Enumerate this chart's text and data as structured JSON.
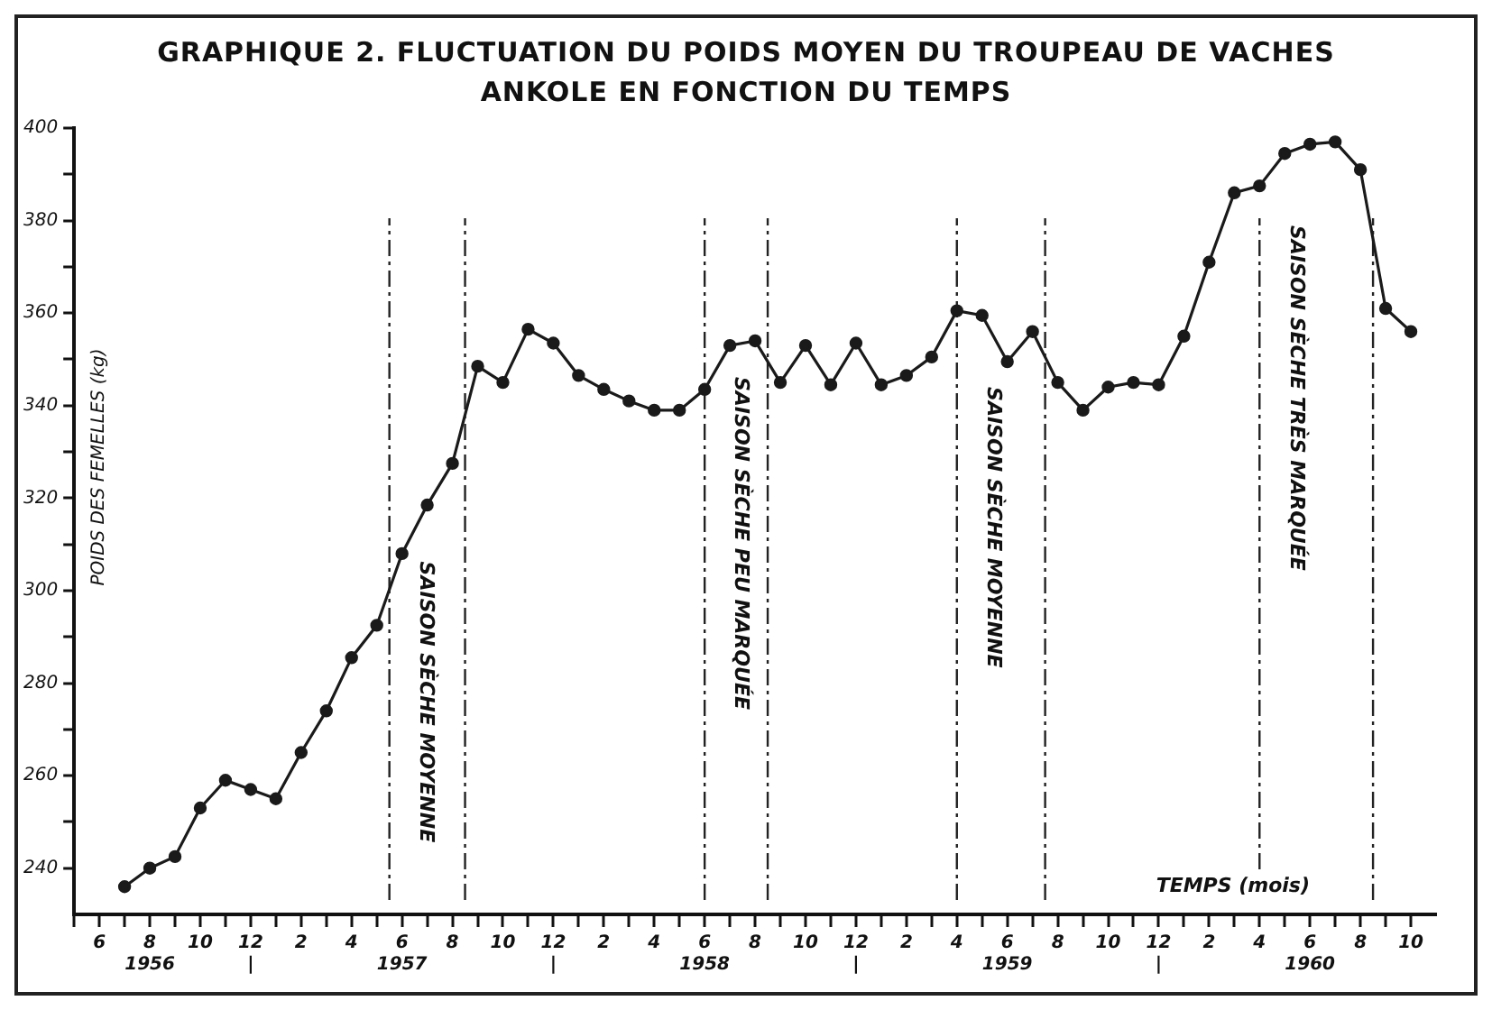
{
  "chart_data": {
    "type": "line",
    "title": "GRAPHIQUE 2.  FLUCTUATION DU POIDS MOYEN DU TROUPEAU DE VACHES\nANKOLE EN FONCTION DU TEMPS",
    "xlabel": "TEMPS (mois)",
    "ylabel": "POIDS DES FEMELLES (kg)",
    "x": [
      "1956-07",
      "1956-08",
      "1956-09",
      "1956-10",
      "1956-11",
      "1956-12",
      "1957-01",
      "1957-02",
      "1957-03",
      "1957-04",
      "1957-05",
      "1957-06",
      "1957-07",
      "1957-08",
      "1957-09",
      "1957-10",
      "1957-11",
      "1957-12",
      "1958-01",
      "1958-02",
      "1958-03",
      "1958-04",
      "1958-05",
      "1958-06",
      "1958-07",
      "1958-08",
      "1958-09",
      "1958-10",
      "1958-11",
      "1958-12",
      "1959-01",
      "1959-02",
      "1959-03",
      "1959-04",
      "1959-05",
      "1959-06",
      "1959-07",
      "1959-08",
      "1959-09",
      "1959-10",
      "1959-11",
      "1959-12",
      "1960-01",
      "1960-02",
      "1960-03",
      "1960-04",
      "1960-05",
      "1960-06",
      "1960-07",
      "1960-08",
      "1960-09",
      "1960-10"
    ],
    "series": [
      {
        "color": "#1a1a1a",
        "values": [
          236,
          240,
          242.5,
          253,
          259,
          257,
          255,
          265,
          274,
          285.5,
          292.5,
          308,
          318.5,
          327.5,
          348.5,
          345,
          356.5,
          353.5,
          346.5,
          343.5,
          341,
          339,
          339,
          343.5,
          353,
          354,
          345,
          353,
          344.5,
          353.5,
          344.5,
          346.5,
          350.5,
          360.5,
          359.5,
          349.5,
          356,
          345,
          339,
          344,
          345,
          344.5,
          355,
          371,
          386,
          387.5,
          394.5,
          396.5,
          397,
          391,
          361,
          356
        ]
      }
    ],
    "marker": "circle",
    "line_style": "solid",
    "xlim": [
      "1956-05",
      "1960-11"
    ],
    "xticks": [
      {
        "value": "1956-05",
        "label": null
      },
      {
        "value": "1956-06",
        "label": "6"
      },
      {
        "value": "1956-07",
        "label": null
      },
      {
        "value": "1956-08",
        "label": "8\n1956"
      },
      {
        "value": "1956-09",
        "label": null
      },
      {
        "value": "1956-10",
        "label": "10"
      },
      {
        "value": "1956-11",
        "label": null
      },
      {
        "value": "1956-12",
        "label": "12\n|"
      },
      {
        "value": "1957-01",
        "label": null
      },
      {
        "value": "1957-02",
        "label": "2"
      },
      {
        "value": "1957-03",
        "label": null
      },
      {
        "value": "1957-04",
        "label": "4"
      },
      {
        "value": "1957-05",
        "label": null
      },
      {
        "value": "1957-06",
        "label": "6\n1957"
      },
      {
        "value": "1957-07",
        "label": null
      },
      {
        "value": "1957-08",
        "label": "8"
      },
      {
        "value": "1957-09",
        "label": null
      },
      {
        "value": "1957-10",
        "label": "10"
      },
      {
        "value": "1957-11",
        "label": null
      },
      {
        "value": "1957-12",
        "label": "12\n|"
      },
      {
        "value": "1958-01",
        "label": null
      },
      {
        "value": "1958-02",
        "label": "2"
      },
      {
        "value": "1958-03",
        "label": null
      },
      {
        "value": "1958-04",
        "label": "4"
      },
      {
        "value": "1958-05",
        "label": null
      },
      {
        "value": "1958-06",
        "label": "6\n1958"
      },
      {
        "value": "1958-07",
        "label": null
      },
      {
        "value": "1958-08",
        "label": "8"
      },
      {
        "value": "1958-09",
        "label": null
      },
      {
        "value": "1958-10",
        "label": "10"
      },
      {
        "value": "1958-11",
        "label": null
      },
      {
        "value": "1958-12",
        "label": "12\n|"
      },
      {
        "value": "1959-01",
        "label": null
      },
      {
        "value": "1959-02",
        "label": "2"
      },
      {
        "value": "1959-03",
        "label": null
      },
      {
        "value": "1959-04",
        "label": "4"
      },
      {
        "value": "1959-05",
        "label": null
      },
      {
        "value": "1959-06",
        "label": "6\n1959"
      },
      {
        "value": "1959-07",
        "label": null
      },
      {
        "value": "1959-08",
        "label": "8"
      },
      {
        "value": "1959-09",
        "label": null
      },
      {
        "value": "1959-10",
        "label": "10"
      },
      {
        "value": "1959-11",
        "label": null
      },
      {
        "value": "1959-12",
        "label": "12\n|"
      },
      {
        "value": "1960-01",
        "label": null
      },
      {
        "value": "1960-02",
        "label": "2"
      },
      {
        "value": "1960-03",
        "label": null
      },
      {
        "value": "1960-04",
        "label": "4"
      },
      {
        "value": "1960-05",
        "label": null
      },
      {
        "value": "1960-06",
        "label": "6\n1960"
      },
      {
        "value": "1960-07",
        "label": null
      },
      {
        "value": "1960-08",
        "label": "8"
      },
      {
        "value": "1960-09",
        "label": null
      },
      {
        "value": "1960-10",
        "label": "10"
      }
    ],
    "ylim": [
      230,
      400
    ],
    "yticks": [
      240,
      {
        "value": 250,
        "label": null
      },
      260,
      {
        "value": 270,
        "label": null
      },
      280,
      {
        "value": 290,
        "label": null
      },
      300,
      {
        "value": 310,
        "label": null
      },
      320,
      {
        "value": 330,
        "label": null
      },
      340,
      {
        "value": 350,
        "label": null
      },
      360,
      {
        "value": 370,
        "label": null
      },
      380,
      {
        "value": 390,
        "label": null
      },
      400
    ],
    "ref_lines": [
      {
        "axis": "x",
        "value": "1957-05-16",
        "line_style": "dashed",
        "label": "SAISON SÈCHE MOYENNE"
      },
      {
        "axis": "x",
        "value": "1957-08-16",
        "line_style": "dashed"
      },
      {
        "axis": "x",
        "value": "1958-06",
        "line_style": "dashed",
        "label": "SAISON SÈCHE PEU MARQUÉE"
      },
      {
        "axis": "x",
        "value": "1958-08-16",
        "line_style": "dashed"
      },
      {
        "axis": "x",
        "value": "1959-04",
        "line_style": "dashed",
        "label": "SAISON SÈCHE MOYENNE"
      },
      {
        "axis": "x",
        "value": "1959-07-16",
        "line_style": "dashed"
      },
      {
        "axis": "x",
        "value": "1960-04",
        "line_style": "dashed",
        "label": "SAISON SÈCHE TRÈS MARQUÉE"
      },
      {
        "axis": "x",
        "value": "1960-08-16",
        "line_style": "dashed"
      }
    ]
  }
}
